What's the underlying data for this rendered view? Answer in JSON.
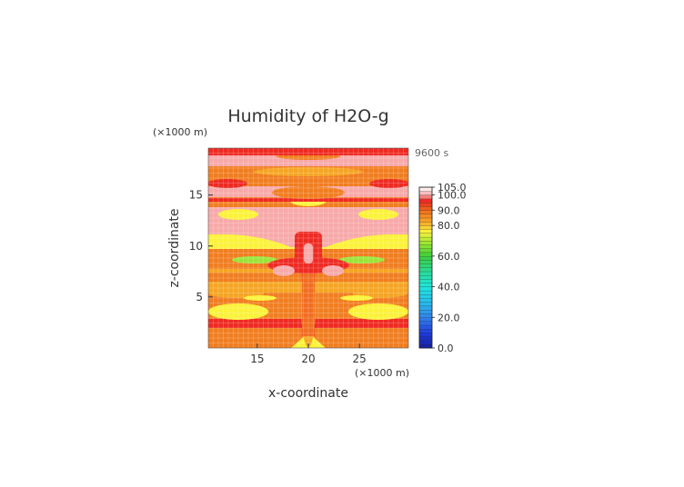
{
  "chart_data": {
    "type": "heatmap",
    "title": "Humidity of H2O-g",
    "time_label": "9600 s",
    "xlabel": "x-coordinate",
    "ylabel": "z-coordinate",
    "x_unit": "(×1000 m)",
    "y_unit": "(×1000 m)",
    "x_range": [
      10.2,
      29.8
    ],
    "y_range": [
      0,
      19.6
    ],
    "x_ticks": [
      15,
      20,
      25
    ],
    "y_ticks": [
      5,
      10,
      15
    ],
    "grid": true,
    "colorbar": {
      "min": 0,
      "max": 105,
      "labels": [
        "105.0",
        "100.0",
        "90.0",
        "80.0",
        "60.0",
        "40.0",
        "20.0",
        "0.0"
      ],
      "label_values": [
        105,
        100,
        90,
        80,
        60,
        40,
        20,
        0
      ]
    },
    "layers": [
      {
        "z": 0.3,
        "value": 85,
        "note": "orange"
      },
      {
        "z": 0.8,
        "value": 88,
        "note": "orange"
      },
      {
        "z": 1.4,
        "value": 92,
        "note": "red band"
      },
      {
        "z": 2.0,
        "value": 85,
        "note": "orange"
      },
      {
        "z": 3.2,
        "value": 77,
        "note": "yellow"
      },
      {
        "z": 4.5,
        "value": 84,
        "note": "orange"
      },
      {
        "z": 5.8,
        "value": 85,
        "note": "orange"
      },
      {
        "z": 7.2,
        "value": 84,
        "note": "orange"
      },
      {
        "z": 8.5,
        "value": 77,
        "note": "yellow"
      },
      {
        "z": 9.3,
        "value": 68,
        "note": "yellow-green"
      },
      {
        "z": 10.8,
        "value": 100,
        "note": "pink"
      },
      {
        "z": 12.8,
        "value": 100,
        "note": "pink"
      },
      {
        "z": 13.2,
        "value": 95,
        "note": "red"
      },
      {
        "z": 13.8,
        "value": 78,
        "note": "yellow"
      },
      {
        "z": 14.6,
        "value": 88,
        "note": "orange"
      },
      {
        "z": 16.0,
        "value": 100,
        "note": "pink"
      },
      {
        "z": 17.5,
        "value": 85,
        "note": "orange"
      },
      {
        "z": 18.3,
        "value": 100,
        "note": "pink"
      },
      {
        "z": 19.3,
        "value": 92,
        "note": "red"
      }
    ],
    "features": [
      {
        "x": 20,
        "z": 10.5,
        "value": 100,
        "note": "central pink column"
      },
      {
        "x": 17.5,
        "z": 8.8,
        "value": 100,
        "note": "left pink lobe"
      },
      {
        "x": 22.5,
        "z": 8.8,
        "value": 100,
        "note": "right pink lobe"
      },
      {
        "x": 15.5,
        "z": 13.8,
        "value": 78,
        "note": "left yellow patch"
      },
      {
        "x": 25,
        "z": 13.8,
        "value": 78,
        "note": "right yellow patch"
      },
      {
        "x": 20,
        "z": 0.5,
        "value": 76,
        "note": "bottom yellow wedge"
      }
    ]
  }
}
